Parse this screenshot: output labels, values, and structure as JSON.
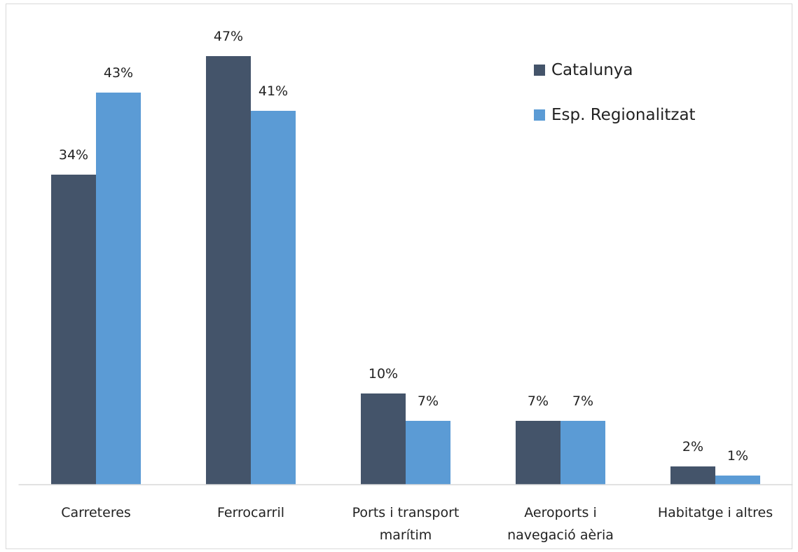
{
  "chart_data": {
    "type": "bar",
    "categories": [
      "Carreteres",
      "Ferrocarril",
      "Ports i transport marítim",
      "Aeroports i navegació aèria",
      "Habitatge i altres"
    ],
    "series": [
      {
        "name": "Catalunya",
        "color": "#44546a",
        "values": [
          34,
          47,
          10,
          7,
          2
        ],
        "value_labels": [
          "34%",
          "47%",
          "10%",
          "7%",
          "2%"
        ]
      },
      {
        "name": "Esp. Regionalitzat",
        "color": "#5b9bd5",
        "values": [
          43,
          41,
          7,
          7,
          1
        ],
        "value_labels": [
          "43%",
          "41%",
          "7%",
          "7%",
          "1%"
        ]
      }
    ],
    "ylim": [
      0,
      50
    ],
    "grid": false,
    "legend": "top-right"
  }
}
